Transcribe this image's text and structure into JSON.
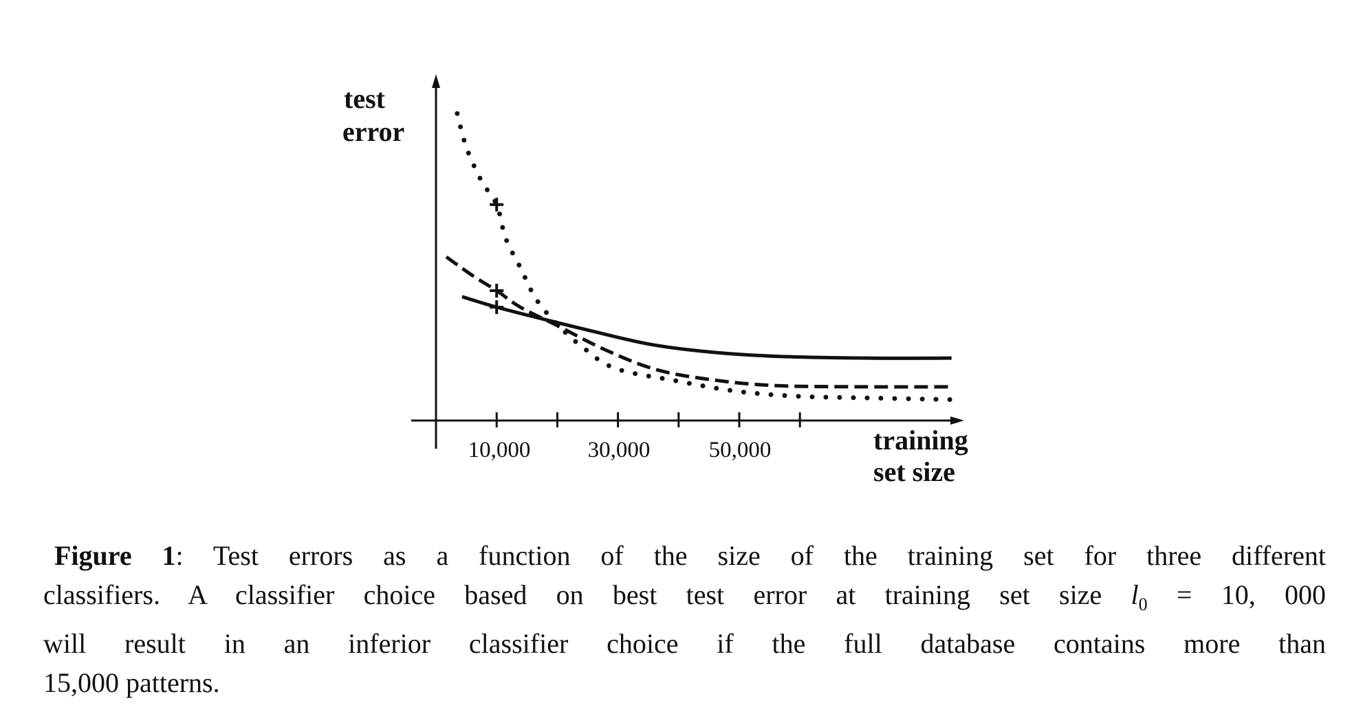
{
  "chart_data": {
    "type": "line",
    "title": "",
    "xlabel": "training set size",
    "ylabel": "test error",
    "xlabel_lines": [
      "training",
      "set size"
    ],
    "ylabel_lines": [
      "test",
      "error"
    ],
    "xlim": [
      0,
      90000
    ],
    "ylim": [
      0,
      10
    ],
    "x_ticks": [
      10000,
      20000,
      30000,
      40000,
      50000,
      60000
    ],
    "x_tick_labels": [
      {
        "x": 10000,
        "label": "10,000"
      },
      {
        "x": 30000,
        "label": "30,000"
      },
      {
        "x": 50000,
        "label": "50,000"
      }
    ],
    "y_ticks": [],
    "grid": false,
    "legend": "none",
    "marker_x": 10000,
    "series": [
      {
        "style": "dotted",
        "x": [
          3500,
          5000,
          7500,
          10000,
          11500,
          14000,
          16500,
          20000,
          24000,
          29500,
          39500,
          49500,
          59500,
          71000,
          85000
        ],
        "y": [
          9.1,
          8.1,
          7.1,
          6.4,
          5.4,
          4.5,
          3.6,
          2.85,
          2.2,
          1.55,
          1.18,
          0.87,
          0.72,
          0.67,
          0.62
        ]
      },
      {
        "style": "dashed",
        "x": [
          1700,
          6000,
          10000,
          13900,
          19600,
          28100,
          36700,
          46700,
          56700,
          71000,
          85300
        ],
        "y": [
          4.85,
          4.3,
          3.85,
          3.36,
          2.85,
          2.08,
          1.49,
          1.18,
          1.03,
          1.0,
          1.0
        ]
      },
      {
        "style": "solid",
        "x": [
          4300,
          10000,
          16700,
          25300,
          35300,
          45300,
          56700,
          71000,
          85000
        ],
        "y": [
          3.67,
          3.36,
          3.05,
          2.67,
          2.26,
          2.03,
          1.9,
          1.85,
          1.85
        ]
      }
    ]
  },
  "caption": {
    "label": "Figure 1",
    "line1": ": Test errors as a function of the size of the training set for three different",
    "line2a": "classifiers. A classifier choice based on best test error at training set size ",
    "line2_var": "l",
    "line2_sub": "0",
    "line2b": " = 10, 000",
    "line3": "will result in an inferior classifier choice if the full database contains more than",
    "line4": "15,000 patterns."
  }
}
